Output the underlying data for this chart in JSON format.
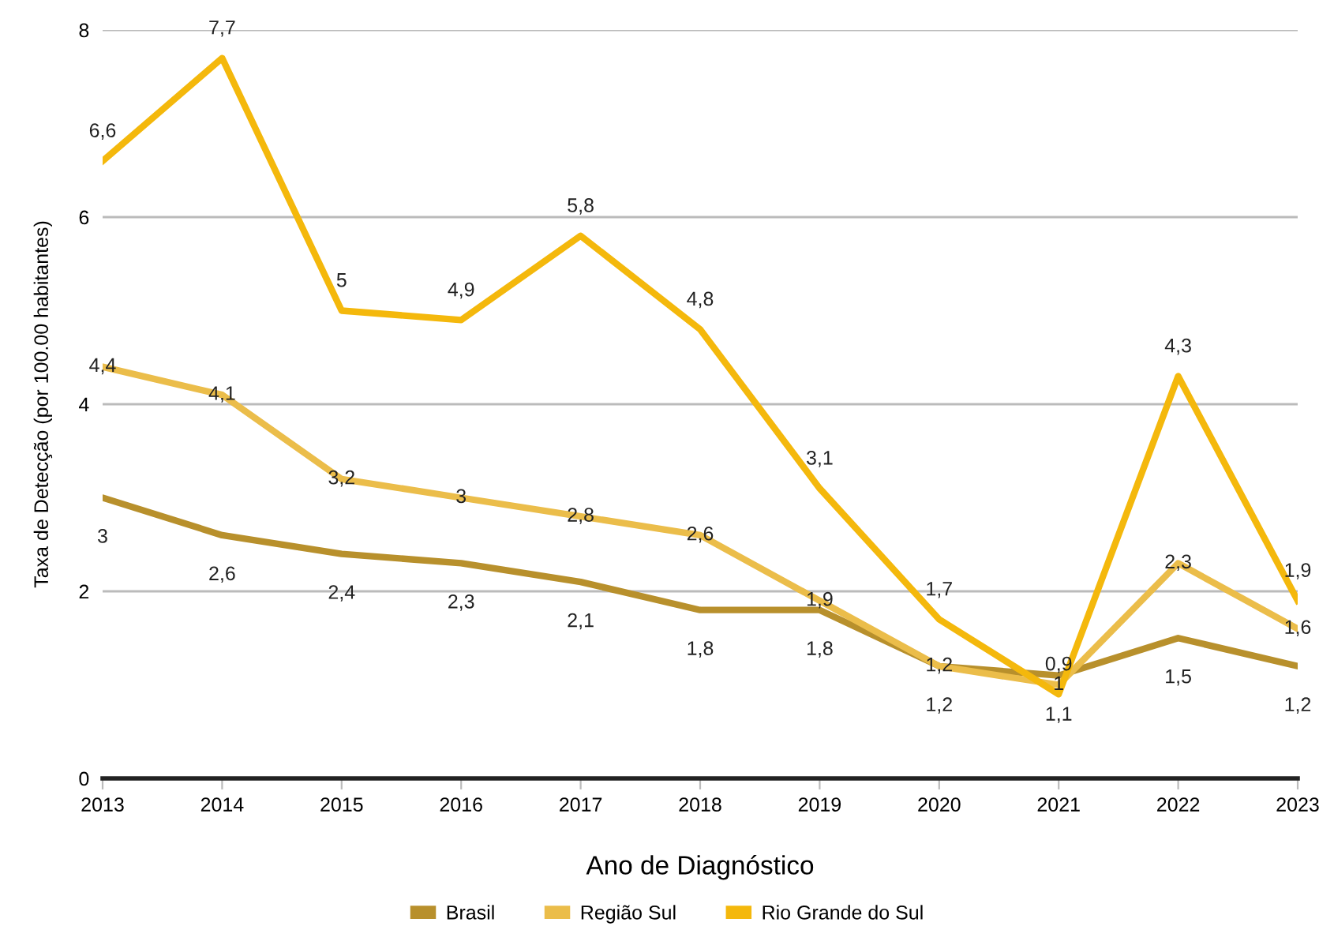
{
  "chart_data": {
    "type": "line",
    "xlabel": "Ano de Diagnóstico",
    "ylabel": "Taxa de Detecção (por 100.00 habitantes)",
    "categories": [
      "2013",
      "2014",
      "2015",
      "2016",
      "2017",
      "2018",
      "2019",
      "2020",
      "2021",
      "2022",
      "2023"
    ],
    "series": [
      {
        "name": "Brasil",
        "color": "#b8902c",
        "values": [
          3,
          2.6,
          2.4,
          2.3,
          2.1,
          1.8,
          1.8,
          1.2,
          1.1,
          1.5,
          1.2
        ],
        "value_labels": [
          "3",
          "2,6",
          "2,4",
          "2,3",
          "2,1",
          "1,8",
          "1,8",
          "1,2",
          "1,1",
          "1,5",
          "1,2"
        ]
      },
      {
        "name": "Região Sul",
        "color": "#ebbd4a",
        "values": [
          4.4,
          4.1,
          3.2,
          3,
          2.8,
          2.6,
          1.9,
          1.2,
          1,
          2.3,
          1.6
        ],
        "value_labels": [
          "4,4",
          "4,1",
          "3,2",
          "3",
          "2,8",
          "2,6",
          "1,9",
          "1,2",
          "1",
          "2,3",
          "1,6"
        ]
      },
      {
        "name": "Rio Grande do Sul",
        "color": "#f4b80c",
        "values": [
          6.6,
          7.7,
          5,
          4.9,
          5.8,
          4.8,
          3.1,
          1.7,
          0.9,
          4.3,
          1.9
        ],
        "value_labels": [
          "6,6",
          "7,7",
          "5",
          "4,9",
          "5,8",
          "4,8",
          "3,1",
          "1,7",
          "0,9",
          "4,3",
          "1,9"
        ]
      }
    ],
    "ylim": [
      0,
      8
    ],
    "yticks": [
      0,
      2,
      4,
      6,
      8
    ],
    "grid": "y",
    "legend": "bottom",
    "marker": "none",
    "line_style": "solid"
  }
}
